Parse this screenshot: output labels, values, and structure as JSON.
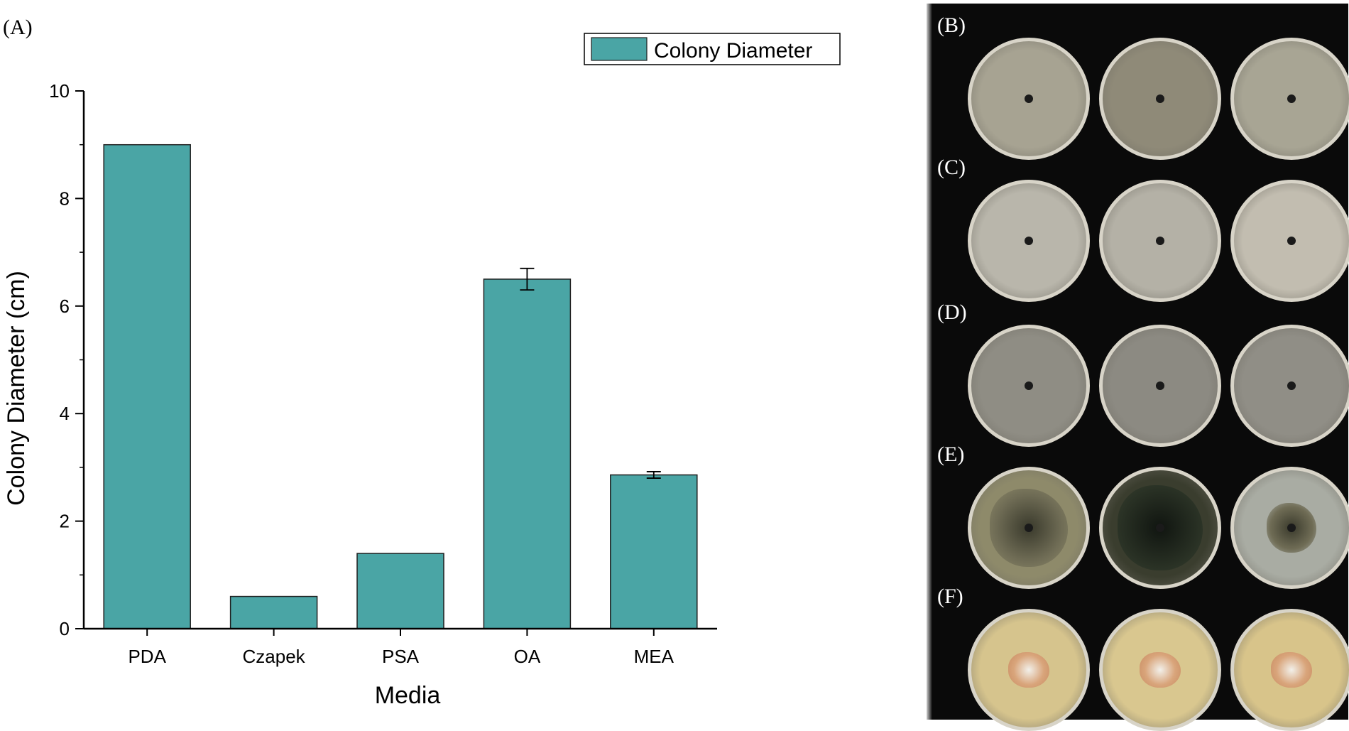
{
  "figure": {
    "panel_labels": [
      "(A)",
      "(B)",
      "(C)",
      "(D)",
      "(E)",
      "(F)"
    ]
  },
  "chart_data": {
    "type": "bar",
    "title": "",
    "xlabel": "Media",
    "ylabel": "Colony Diameter (cm)",
    "categories": [
      "PDA",
      "Czapek",
      "PSA",
      "OA",
      "MEA"
    ],
    "series": [
      {
        "name": "Colony Diameter",
        "values": [
          9.0,
          0.6,
          1.4,
          6.5,
          2.86
        ],
        "errors": [
          0,
          0,
          0,
          0.2,
          0.06
        ],
        "color": "#4aa5a5"
      }
    ],
    "ylim": [
      0,
      10
    ],
    "yticks": [
      0,
      2,
      4,
      6,
      8,
      10
    ],
    "legend": {
      "position": "top-right",
      "label": "Colony Diameter"
    }
  },
  "photos": {
    "rows": [
      {
        "label": "(B)",
        "description_icon": "petri-dish-gray-fluffy-icon",
        "colors": [
          "#a7a392",
          "#8f8a78",
          "#a8a594"
        ]
      },
      {
        "label": "(C)",
        "description_icon": "petri-dish-clear-icon",
        "colors": [
          "#b9b6ab",
          "#b4b1a6",
          "#c2bdb0"
        ]
      },
      {
        "label": "(D)",
        "description_icon": "petri-dish-clear-icon",
        "colors": [
          "#8f8d84",
          "#8c8a82",
          "#908e86"
        ]
      },
      {
        "label": "(E)",
        "description_icon": "petri-dish-dark-mycelium-icon",
        "colors": [
          "#8e8a6a",
          "#3a3d2e",
          "#a9aca3"
        ]
      },
      {
        "label": "(F)",
        "description_icon": "petri-dish-yellow-colony-icon",
        "colors": [
          "#d6c48d",
          "#d9c78f",
          "#d8c48a"
        ]
      }
    ]
  }
}
